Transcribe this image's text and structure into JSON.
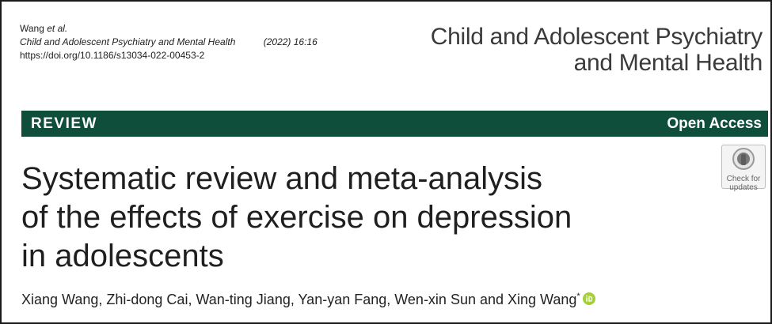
{
  "header": {
    "author_short": "Wang",
    "et_al": "et al.",
    "journal_citation": "Child and Adolescent Psychiatry and Mental Health",
    "volume_info": "(2022) 16:16",
    "doi": "https://doi.org/10.1186/s13034-022-00453-2"
  },
  "journal_brand": {
    "line1": "Child and Adolescent Psychiatry",
    "line2": "and Mental Health"
  },
  "type_bar": {
    "article_type": "REVIEW",
    "access": "Open Access",
    "color": "#0e4e3b"
  },
  "check_updates": {
    "label_line1": "Check for",
    "label_line2": "updates",
    "icon": "crossmark-icon"
  },
  "title": {
    "line1": "Systematic review and meta-analysis",
    "line2": "of the effects of exercise on depression",
    "line3": "in adolescents"
  },
  "authors": {
    "list": "Xiang Wang, Zhi-dong Cai, Wan-ting Jiang, Yan-yan Fang, Wen-xin Sun and Xing Wang",
    "corresponding_mark": "*",
    "orcid_icon": "orcid-icon",
    "orcid_color": "#a6ce39"
  }
}
